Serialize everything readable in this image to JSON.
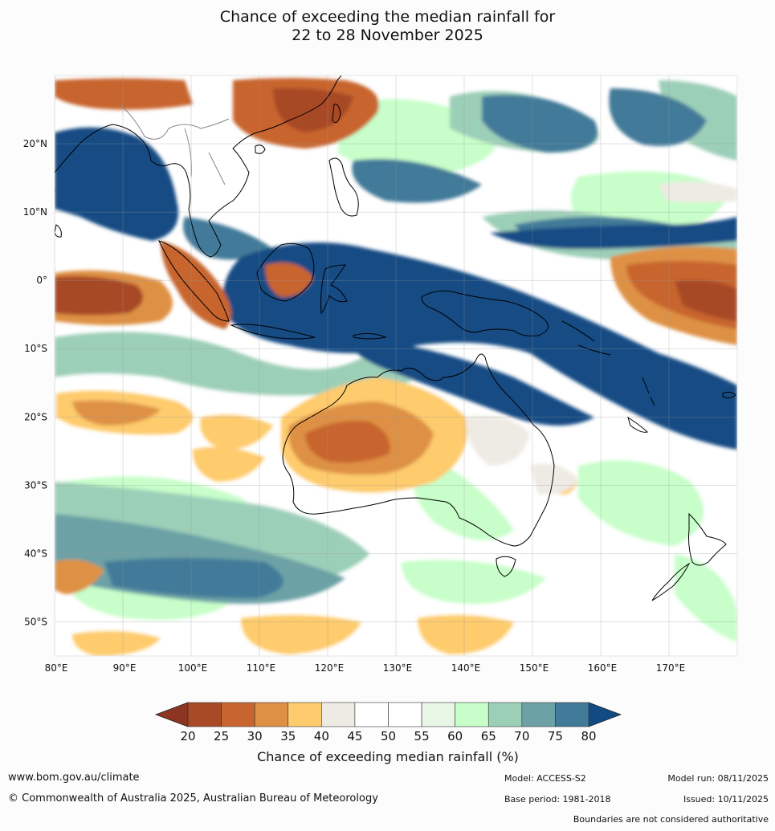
{
  "title": {
    "line1": "Chance of exceeding the median rainfall for",
    "line2": "22 to 28 November 2025"
  },
  "map": {
    "lat_labels": [
      "20°N",
      "10°N",
      "0°",
      "10°S",
      "20°S",
      "30°S",
      "40°S",
      "50°S"
    ],
    "lon_labels": [
      "80°E",
      "90°E",
      "100°E",
      "110°E",
      "120°E",
      "130°E",
      "140°E",
      "150°E",
      "160°E",
      "170°E"
    ],
    "lat_values": [
      20,
      10,
      0,
      -10,
      -20,
      -30,
      -40,
      -50
    ],
    "lon_values": [
      80,
      90,
      100,
      110,
      120,
      130,
      140,
      150,
      160,
      170
    ],
    "lon_range": [
      80,
      180
    ],
    "lat_range": [
      -55,
      30
    ]
  },
  "colorbar": {
    "label": "Chance of exceeding median rainfall (%)",
    "ticks": [
      "20",
      "25",
      "30",
      "35",
      "40",
      "45",
      "50",
      "55",
      "60",
      "65",
      "70",
      "75",
      "80"
    ],
    "colors": [
      "#a84a26",
      "#c8652f",
      "#de9145",
      "#fecb6d",
      "#eeebe4",
      "#ffffff",
      "#ffffff",
      "#e8f6e6",
      "#c7fec9",
      "#9ccfb8",
      "#6ca1a5",
      "#427a99"
    ],
    "under_color": "#8e3521",
    "over_color": "#124b84"
  },
  "legend_colors": {
    "water": "#ffffff",
    "land_dry": "#c8652f",
    "wet": "#124b84"
  },
  "footer": {
    "website": "www.bom.gov.au/climate",
    "copyright": "© Commonwealth of Australia 2025, Australian Bureau of Meteorology",
    "model": "Model: ACCESS-S2",
    "model_run": "Model run: 08/11/2025",
    "base_period": "Base period: 1981-2018",
    "issued": "Issued: 10/11/2025",
    "boundaries_note": "Boundaries are not considered authoritative"
  }
}
